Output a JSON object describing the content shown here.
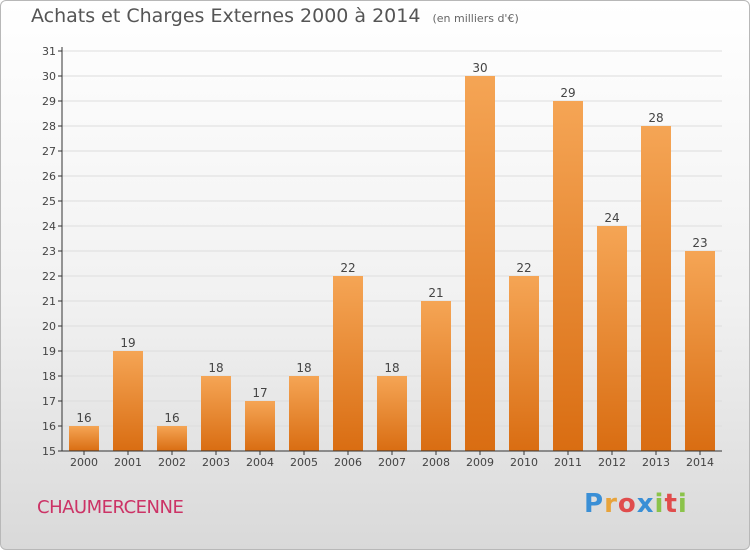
{
  "header": {
    "title": "Achats et Charges Externes 2000 à 2014",
    "subtitle": "(en milliers d'€)"
  },
  "commune": "CHAUMERCENNE",
  "logo": {
    "letters": [
      "P",
      "r",
      "o",
      "x",
      "i",
      "t",
      "i"
    ],
    "colors": [
      "#3a8fd6",
      "#e8a33a",
      "#e04c4c",
      "#3a8fd6",
      "#8bc34a",
      "#e04c4c",
      "#8bc34a"
    ]
  },
  "colors": {
    "bar_top": "#f5a555",
    "bar_bottom": "#d96d12",
    "grid": "#dddddd",
    "axis": "#333333"
  },
  "chart_data": {
    "type": "bar",
    "categories": [
      "2000",
      "2001",
      "2002",
      "2003",
      "2004",
      "2005",
      "2006",
      "2007",
      "2008",
      "2009",
      "2010",
      "2011",
      "2012",
      "2013",
      "2014"
    ],
    "values": [
      16,
      19,
      16,
      18,
      17,
      18,
      22,
      18,
      21,
      30,
      22,
      29,
      24,
      28,
      23
    ],
    "value_labels": [
      "16",
      "19",
      "16",
      "18",
      "17",
      "18",
      "22",
      "18",
      "21",
      "30",
      "22",
      "29",
      "24",
      "28",
      "23"
    ],
    "y_ticks": [
      "15",
      "16",
      "17",
      "18",
      "19",
      "20",
      "21",
      "22",
      "23",
      "24",
      "25",
      "26",
      "27",
      "28",
      "29",
      "30",
      "31"
    ],
    "ylim": [
      15,
      31
    ],
    "grid": true
  }
}
